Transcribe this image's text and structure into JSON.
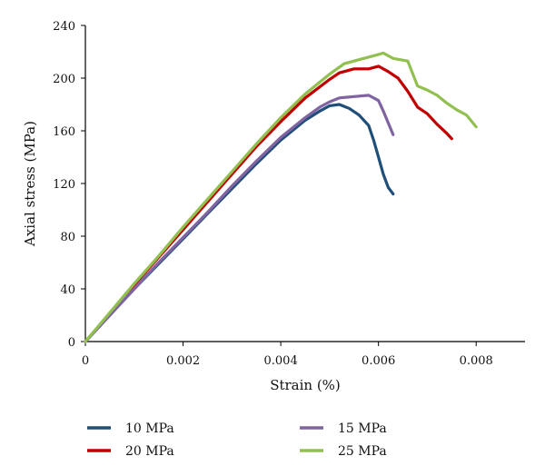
{
  "chart_data": {
    "type": "line",
    "xlabel": "Strain (%)",
    "ylabel": "Axial stress (MPa)",
    "xlim": [
      0,
      0.009
    ],
    "ylim": [
      0,
      240
    ],
    "x_ticks": [
      "0",
      "0.002",
      "0.004",
      "0.006",
      "0.008"
    ],
    "y_ticks": [
      "0",
      "40",
      "80",
      "120",
      "160",
      "200",
      "240"
    ],
    "grid": false,
    "legend_position": "bottom",
    "series": [
      {
        "name": "10 MPa",
        "color": "#1f4e79",
        "points": [
          [
            0,
            0
          ],
          [
            0.0005,
            20
          ],
          [
            0.001,
            40
          ],
          [
            0.0015,
            59
          ],
          [
            0.002,
            78
          ],
          [
            0.0025,
            97
          ],
          [
            0.003,
            116
          ],
          [
            0.0035,
            135
          ],
          [
            0.004,
            153
          ],
          [
            0.0045,
            168
          ],
          [
            0.0048,
            175
          ],
          [
            0.005,
            179
          ],
          [
            0.0052,
            180
          ],
          [
            0.0054,
            177
          ],
          [
            0.0056,
            172
          ],
          [
            0.0058,
            164
          ],
          [
            0.0059,
            153
          ],
          [
            0.006,
            140
          ],
          [
            0.0061,
            127
          ],
          [
            0.0062,
            117
          ],
          [
            0.0063,
            112
          ]
        ]
      },
      {
        "name": "20 MPa",
        "color": "#c00000",
        "points": [
          [
            0,
            0
          ],
          [
            0.0005,
            21
          ],
          [
            0.001,
            43
          ],
          [
            0.0015,
            64
          ],
          [
            0.002,
            85
          ],
          [
            0.0025,
            106
          ],
          [
            0.003,
            127
          ],
          [
            0.0035,
            148
          ],
          [
            0.004,
            167
          ],
          [
            0.0045,
            185
          ],
          [
            0.005,
            199
          ],
          [
            0.0052,
            204
          ],
          [
            0.0055,
            207
          ],
          [
            0.0058,
            207
          ],
          [
            0.006,
            209
          ],
          [
            0.0062,
            205
          ],
          [
            0.0064,
            200
          ],
          [
            0.0066,
            190
          ],
          [
            0.0068,
            178
          ],
          [
            0.007,
            173
          ],
          [
            0.0072,
            165
          ],
          [
            0.0074,
            158
          ],
          [
            0.0075,
            154
          ]
        ]
      },
      {
        "name": "15 MPa",
        "color": "#8064a2",
        "points": [
          [
            0,
            0
          ],
          [
            0.0005,
            20
          ],
          [
            0.001,
            40
          ],
          [
            0.0015,
            60
          ],
          [
            0.002,
            79
          ],
          [
            0.0025,
            98
          ],
          [
            0.003,
            118
          ],
          [
            0.0035,
            137
          ],
          [
            0.004,
            155
          ],
          [
            0.0045,
            170
          ],
          [
            0.0048,
            178
          ],
          [
            0.005,
            182
          ],
          [
            0.0052,
            185
          ],
          [
            0.0055,
            186
          ],
          [
            0.0058,
            187
          ],
          [
            0.006,
            183
          ],
          [
            0.0061,
            175
          ],
          [
            0.0062,
            166
          ],
          [
            0.0063,
            157
          ]
        ]
      },
      {
        "name": "25 MPa",
        "color": "#92c050",
        "points": [
          [
            0,
            0
          ],
          [
            0.0005,
            22
          ],
          [
            0.001,
            44
          ],
          [
            0.0015,
            65
          ],
          [
            0.002,
            87
          ],
          [
            0.0025,
            108
          ],
          [
            0.003,
            129
          ],
          [
            0.0035,
            150
          ],
          [
            0.004,
            170
          ],
          [
            0.0045,
            188
          ],
          [
            0.005,
            203
          ],
          [
            0.0053,
            211
          ],
          [
            0.0056,
            214
          ],
          [
            0.0059,
            217
          ],
          [
            0.0061,
            219
          ],
          [
            0.0063,
            215
          ],
          [
            0.0066,
            213
          ],
          [
            0.0068,
            194
          ],
          [
            0.007,
            191
          ],
          [
            0.0072,
            187
          ],
          [
            0.0074,
            181
          ],
          [
            0.0076,
            176
          ],
          [
            0.0078,
            172
          ],
          [
            0.008,
            163
          ]
        ]
      }
    ]
  }
}
